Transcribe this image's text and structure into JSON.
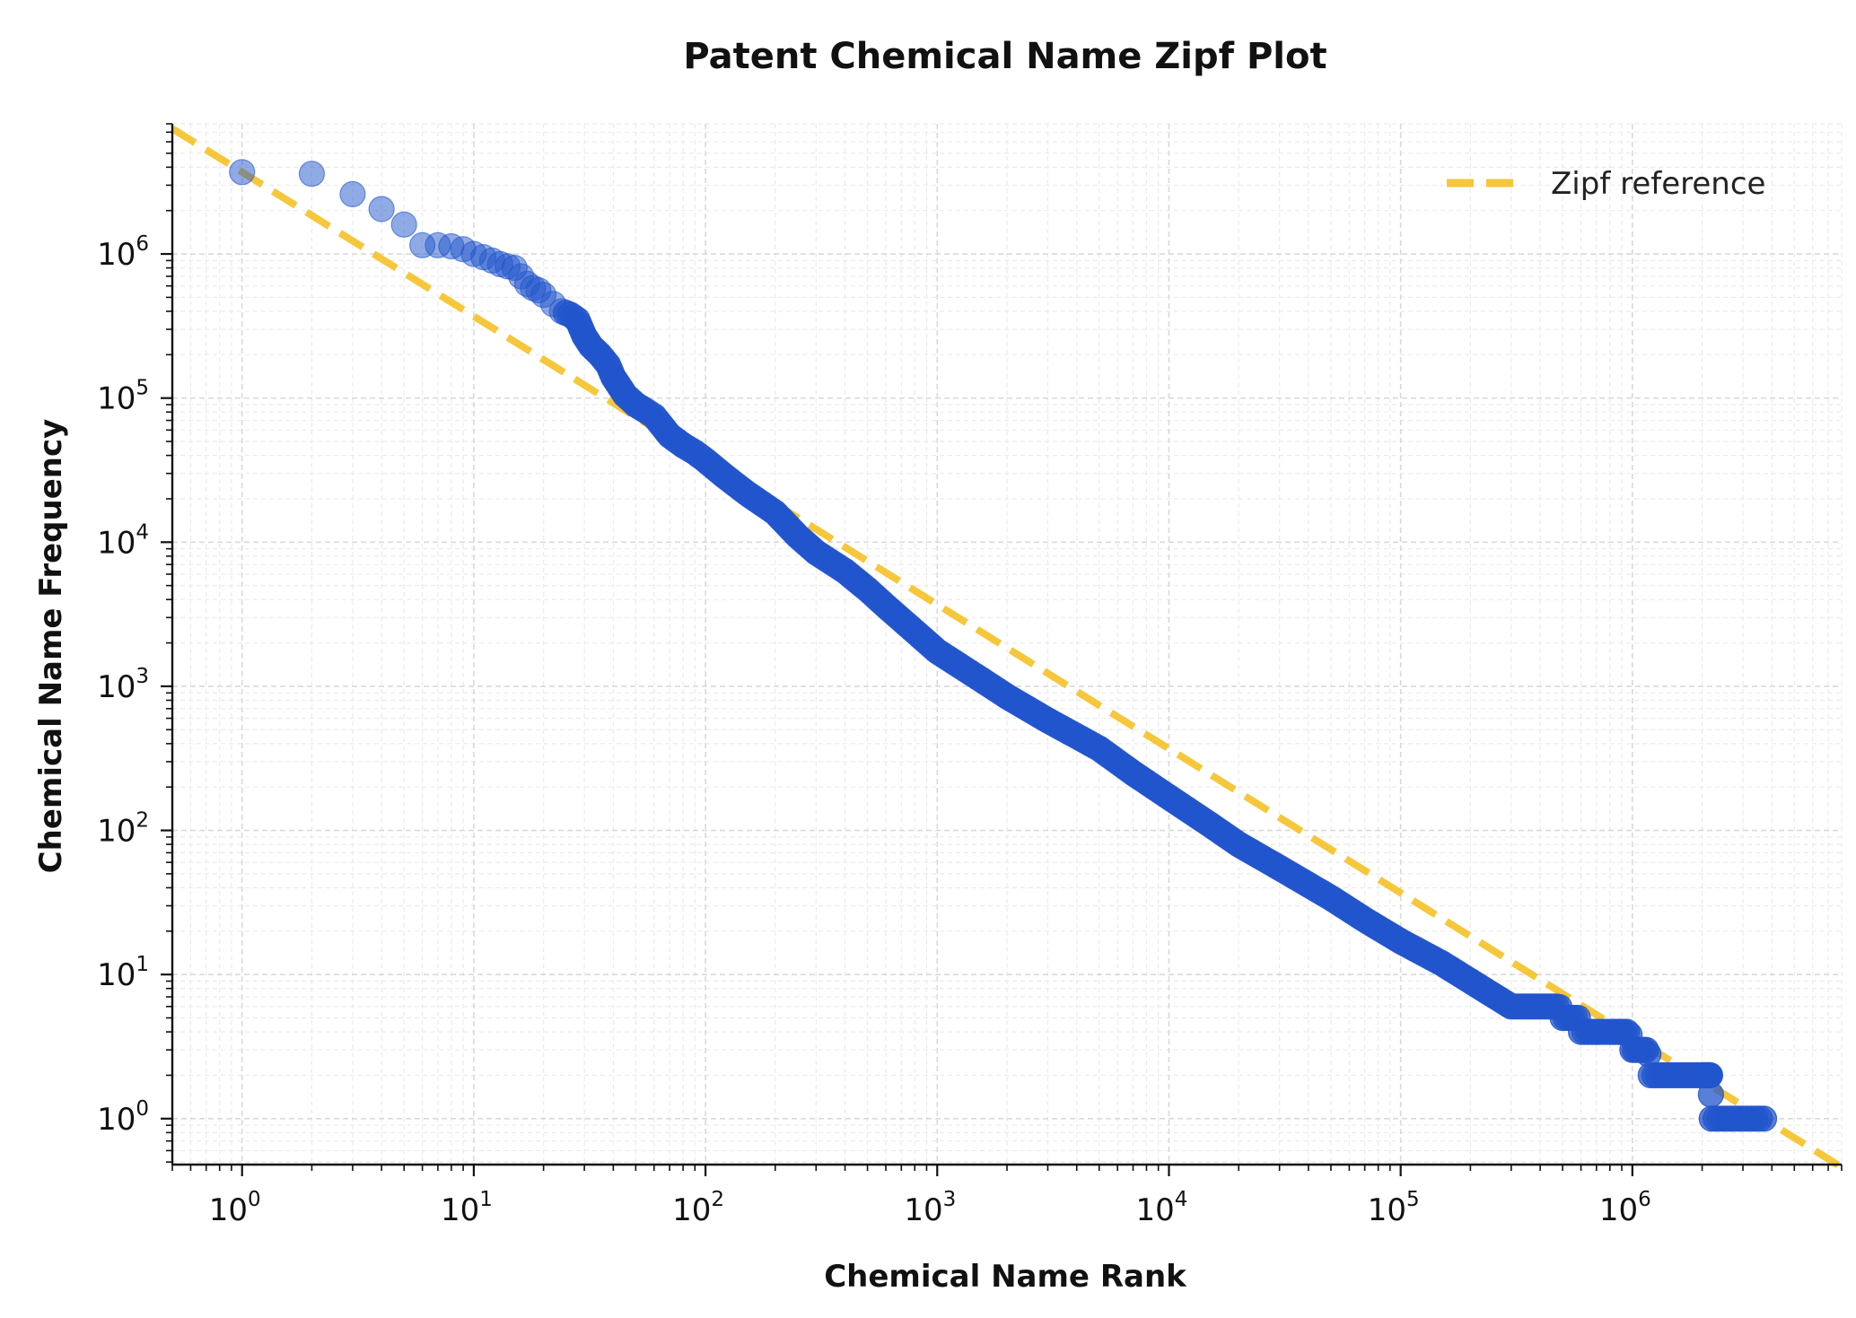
{
  "chart_data": {
    "type": "scatter",
    "title": "Patent Chemical Name Zipf Plot",
    "xlabel": "Chemical Name Rank",
    "ylabel": "Chemical Name Frequency",
    "xscale": "log",
    "yscale": "log",
    "xlim": [
      0.5,
      8000000
    ],
    "ylim": [
      0.48,
      8000000
    ],
    "grid": true,
    "legend_position": "top-right",
    "x_tick_labels": [
      {
        "value": 1,
        "base": "10",
        "exp": "0"
      },
      {
        "value": 10,
        "base": "10",
        "exp": "1"
      },
      {
        "value": 100,
        "base": "10",
        "exp": "2"
      },
      {
        "value": 1000,
        "base": "10",
        "exp": "3"
      },
      {
        "value": 10000,
        "base": "10",
        "exp": "4"
      },
      {
        "value": 100000,
        "base": "10",
        "exp": "5"
      },
      {
        "value": 1000000,
        "base": "10",
        "exp": "6"
      }
    ],
    "y_tick_labels": [
      {
        "value": 1,
        "base": "10",
        "exp": "0"
      },
      {
        "value": 10,
        "base": "10",
        "exp": "1"
      },
      {
        "value": 100,
        "base": "10",
        "exp": "2"
      },
      {
        "value": 1000,
        "base": "10",
        "exp": "3"
      },
      {
        "value": 10000,
        "base": "10",
        "exp": "4"
      },
      {
        "value": 100000,
        "base": "10",
        "exp": "5"
      },
      {
        "value": 1000000,
        "base": "10",
        "exp": "6"
      }
    ],
    "series": [
      {
        "kind": "scatter",
        "color": "#2255cc",
        "points": [
          [
            1,
            3700000
          ],
          [
            2,
            3600000
          ],
          [
            3,
            2600000
          ],
          [
            4,
            2050000
          ],
          [
            5,
            1600000
          ],
          [
            6,
            1150000
          ],
          [
            7,
            1150000
          ],
          [
            8,
            1130000
          ],
          [
            9,
            1080000
          ],
          [
            10,
            1000000
          ],
          [
            11,
            950000
          ],
          [
            12,
            900000
          ],
          [
            13,
            850000
          ],
          [
            14,
            820000
          ],
          [
            15,
            800000
          ],
          [
            16,
            700000
          ],
          [
            17,
            620000
          ],
          [
            18,
            580000
          ],
          [
            19,
            560000
          ],
          [
            20,
            520000
          ],
          [
            22,
            450000
          ],
          [
            24,
            400000
          ],
          [
            26,
            380000
          ],
          [
            28,
            350000
          ],
          [
            30,
            270000
          ],
          [
            32,
            230000
          ],
          [
            35,
            200000
          ],
          [
            38,
            170000
          ],
          [
            40,
            140000
          ],
          [
            45,
            105000
          ],
          [
            50,
            90000
          ],
          [
            55,
            82000
          ],
          [
            60,
            75000
          ],
          [
            70,
            55000
          ],
          [
            80,
            47000
          ],
          [
            90,
            42000
          ],
          [
            100,
            37000
          ],
          [
            120,
            29000
          ],
          [
            150,
            22000
          ],
          [
            200,
            16000
          ],
          [
            250,
            11000
          ],
          [
            300,
            8500
          ],
          [
            400,
            6300
          ],
          [
            500,
            4700
          ],
          [
            600,
            3600
          ],
          [
            800,
            2400
          ],
          [
            1000,
            1750
          ],
          [
            1500,
            1150
          ],
          [
            2000,
            850
          ],
          [
            3000,
            580
          ],
          [
            5000,
            370
          ],
          [
            7000,
            250
          ],
          [
            10000,
            170
          ],
          [
            15000,
            110
          ],
          [
            20000,
            80
          ],
          [
            30000,
            55
          ],
          [
            50000,
            34
          ],
          [
            70000,
            24
          ],
          [
            100000,
            17
          ],
          [
            150000,
            12
          ],
          [
            200000,
            9
          ],
          [
            300000,
            6
          ],
          [
            400000,
            6
          ],
          [
            500000,
            5
          ],
          [
            600000,
            4
          ],
          [
            800000,
            4
          ],
          [
            1000000,
            3
          ],
          [
            1200000,
            2
          ],
          [
            1600000,
            2
          ],
          [
            2000000,
            2
          ],
          [
            2200000,
            1
          ],
          [
            3000000,
            1
          ],
          [
            3700000,
            1
          ]
        ]
      },
      {
        "name": "Zipf reference",
        "kind": "line",
        "style": "dashed",
        "color": "#f6c531",
        "points": [
          [
            0.5,
            7400000
          ],
          [
            8000000,
            0.46
          ]
        ]
      }
    ]
  }
}
